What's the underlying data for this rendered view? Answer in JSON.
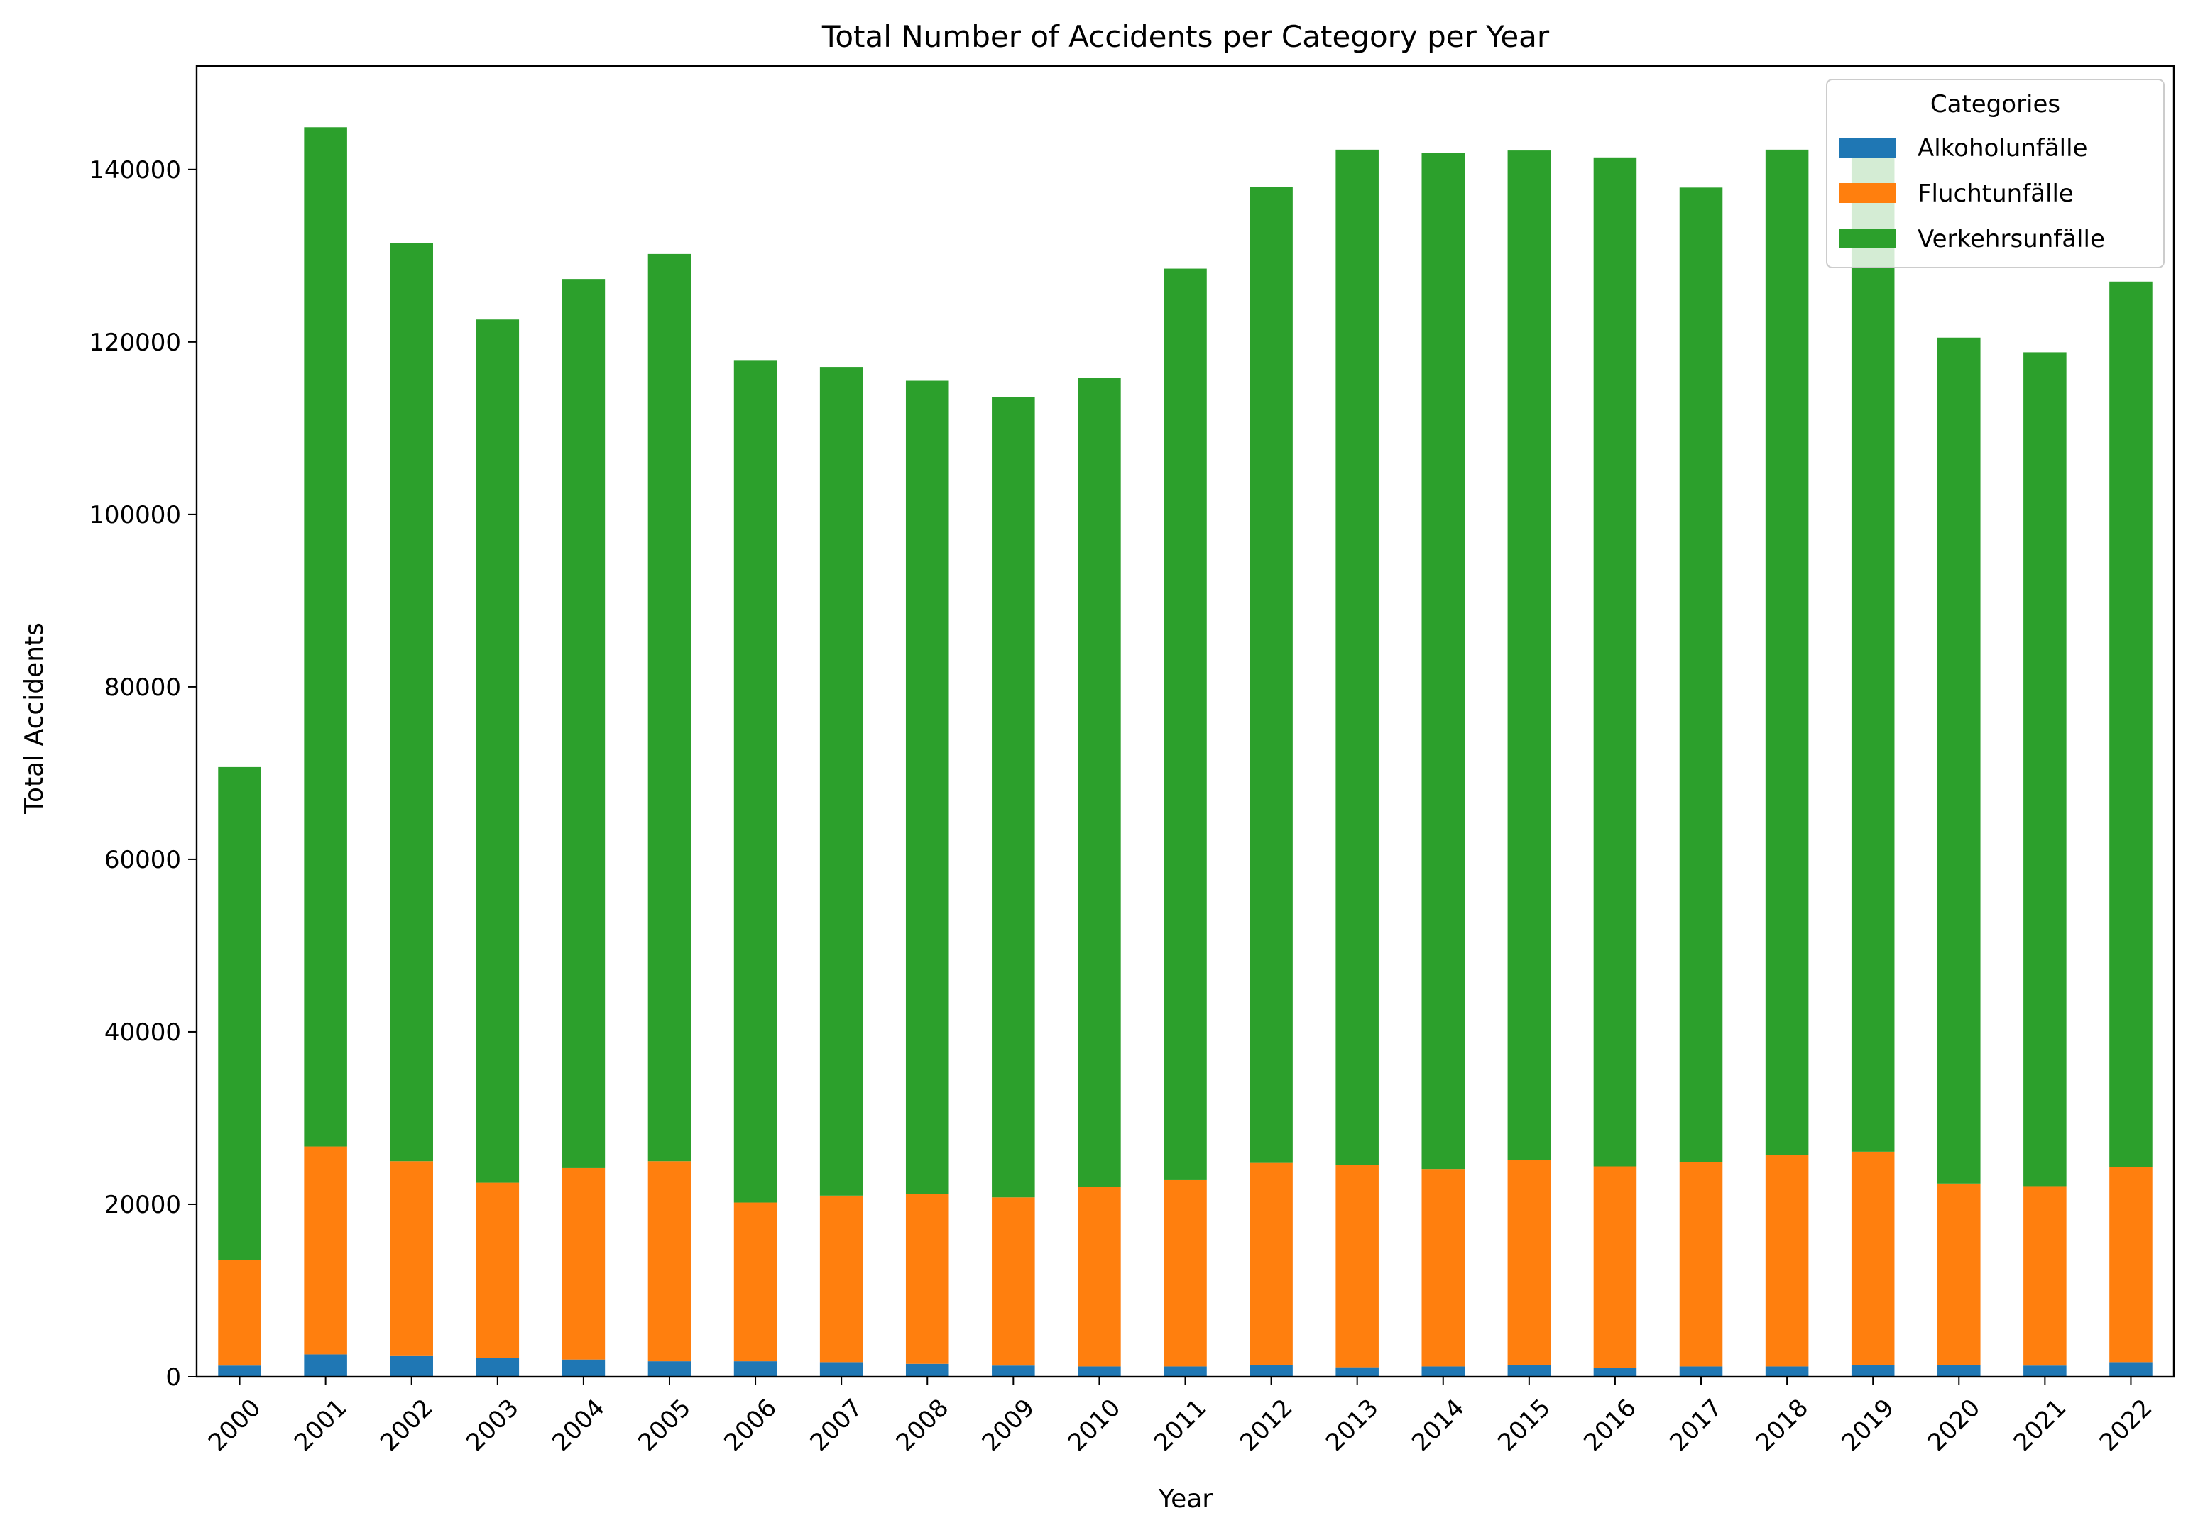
{
  "chart_data": {
    "type": "bar",
    "stacked": true,
    "title": "Total Number of Accidents per Category per Year",
    "xlabel": "Year",
    "ylabel": "Total Accidents",
    "ylim": [
      0,
      152000
    ],
    "yticks": [
      0,
      20000,
      40000,
      60000,
      80000,
      100000,
      120000,
      140000
    ],
    "grid": false,
    "legend": {
      "title": "Categories",
      "position": "top-right"
    },
    "categories": [
      "2000",
      "2001",
      "2002",
      "2003",
      "2004",
      "2005",
      "2006",
      "2007",
      "2008",
      "2009",
      "2010",
      "2011",
      "2012",
      "2013",
      "2014",
      "2015",
      "2016",
      "2017",
      "2018",
      "2019",
      "2020",
      "2021",
      "2022"
    ],
    "series": [
      {
        "name": "Alkoholunfälle",
        "color": "#1f77b4",
        "values": [
          1300,
          2600,
          2400,
          2200,
          2000,
          1800,
          1800,
          1700,
          1500,
          1300,
          1200,
          1200,
          1400,
          1100,
          1200,
          1400,
          1000,
          1200,
          1200,
          1400,
          1400,
          1300,
          1700
        ]
      },
      {
        "name": "Fluchtunfälle",
        "color": "#ff7f0e",
        "values": [
          12200,
          24100,
          22600,
          20300,
          22200,
          23200,
          18400,
          19300,
          19700,
          19500,
          20800,
          21600,
          23400,
          23500,
          22900,
          23700,
          23400,
          23700,
          24500,
          24700,
          21000,
          20800,
          22600
        ]
      },
      {
        "name": "Verkehrsunfälle",
        "color": "#2ca02c",
        "values": [
          57200,
          118200,
          106500,
          100100,
          103100,
          105200,
          97700,
          96100,
          94300,
          92800,
          93800,
          105700,
          113200,
          117700,
          117800,
          117100,
          117000,
          113000,
          116600,
          115900,
          98100,
          96700,
          102700
        ]
      }
    ]
  }
}
